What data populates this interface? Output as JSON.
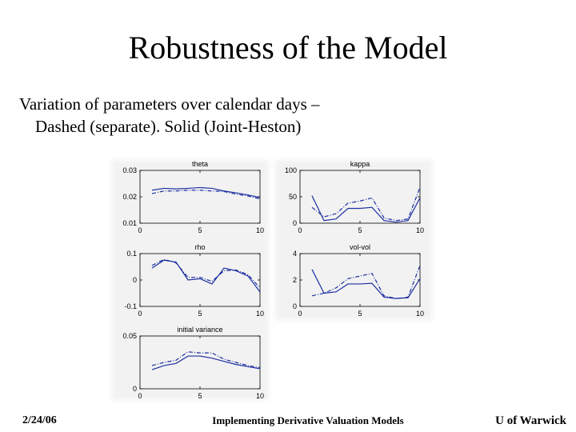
{
  "slide": {
    "title": "Robustness of the Model",
    "body_line1": "Variation of parameters over calendar days –",
    "body_line2": "Dashed (separate). Solid (Joint-Heston)",
    "footer_date": "2/24/06",
    "footer_center": "Implementing Derivative Valuation Models",
    "footer_right": "U of Warwick"
  },
  "colors": {
    "line": "#1c2fa0",
    "axis": "#000000"
  },
  "chart_data": [
    {
      "type": "line",
      "title": "theta",
      "x": [
        1,
        2,
        3,
        4,
        5,
        6,
        7,
        8,
        9,
        10
      ],
      "xlim": [
        0,
        10
      ],
      "ylim": [
        0.01,
        0.03
      ],
      "xticks": [
        "0",
        "5",
        "10"
      ],
      "yticks": [
        "0.01",
        "0.02",
        "0.03"
      ],
      "series": [
        {
          "style": "solid",
          "values": [
            0.0225,
            0.0232,
            0.023,
            0.0232,
            0.0235,
            0.0232,
            0.0222,
            0.0215,
            0.0207,
            0.0197
          ]
        },
        {
          "style": "dashed",
          "values": [
            0.0212,
            0.0222,
            0.0222,
            0.0225,
            0.0225,
            0.0222,
            0.022,
            0.021,
            0.0203,
            0.0192
          ]
        }
      ]
    },
    {
      "type": "line",
      "title": "kappa",
      "x": [
        1,
        2,
        3,
        4,
        5,
        6,
        7,
        8,
        9,
        10
      ],
      "xlim": [
        0,
        10
      ],
      "ylim": [
        0,
        100
      ],
      "xticks": [
        "0",
        "5",
        "10"
      ],
      "yticks": [
        "0",
        "50",
        "100"
      ],
      "series": [
        {
          "style": "solid",
          "values": [
            52,
            5,
            8,
            28,
            28,
            30,
            5,
            2,
            5,
            48
          ]
        },
        {
          "style": "dashed",
          "values": [
            30,
            12,
            18,
            38,
            42,
            48,
            10,
            5,
            8,
            68
          ]
        }
      ]
    },
    {
      "type": "line",
      "title": "rho",
      "x": [
        1,
        2,
        3,
        4,
        5,
        6,
        7,
        8,
        9,
        10
      ],
      "xlim": [
        0,
        10
      ],
      "ylim": [
        -0.1,
        0.1
      ],
      "xticks": [
        "0",
        "5",
        "10"
      ],
      "yticks": [
        "-0.1",
        "0",
        "0.1"
      ],
      "series": [
        {
          "style": "solid",
          "values": [
            0.045,
            0.075,
            0.068,
            0.0,
            0.005,
            -0.015,
            0.045,
            0.035,
            0.015,
            -0.045
          ]
        },
        {
          "style": "dashed",
          "values": [
            0.055,
            0.078,
            0.065,
            0.01,
            0.01,
            -0.005,
            0.035,
            0.038,
            0.02,
            -0.03
          ]
        }
      ]
    },
    {
      "type": "line",
      "title": "vol-vol",
      "x": [
        1,
        2,
        3,
        4,
        5,
        6,
        7,
        8,
        9,
        10
      ],
      "xlim": [
        0,
        10
      ],
      "ylim": [
        0,
        4
      ],
      "xticks": [
        "0",
        "5",
        "10"
      ],
      "yticks": [
        "0",
        "2",
        "4"
      ],
      "series": [
        {
          "style": "solid",
          "values": [
            2.8,
            1.0,
            1.1,
            1.7,
            1.7,
            1.75,
            0.7,
            0.6,
            0.65,
            2.1
          ]
        },
        {
          "style": "dashed",
          "values": [
            0.8,
            1.0,
            1.4,
            2.1,
            2.3,
            2.5,
            0.8,
            0.6,
            0.7,
            3.1
          ]
        }
      ]
    },
    {
      "type": "line",
      "title": "initial variance",
      "x": [
        1,
        2,
        3,
        4,
        5,
        6,
        7,
        8,
        9,
        10
      ],
      "xlim": [
        0,
        10
      ],
      "ylim": [
        0,
        0.05
      ],
      "xticks": [
        "0",
        "5",
        "10"
      ],
      "yticks": [
        "0",
        "0.05"
      ],
      "series": [
        {
          "style": "solid",
          "values": [
            0.018,
            0.022,
            0.024,
            0.031,
            0.031,
            0.029,
            0.026,
            0.023,
            0.021,
            0.019
          ]
        },
        {
          "style": "dashed",
          "values": [
            0.022,
            0.025,
            0.027,
            0.035,
            0.034,
            0.034,
            0.028,
            0.025,
            0.022,
            0.02
          ]
        }
      ]
    }
  ]
}
